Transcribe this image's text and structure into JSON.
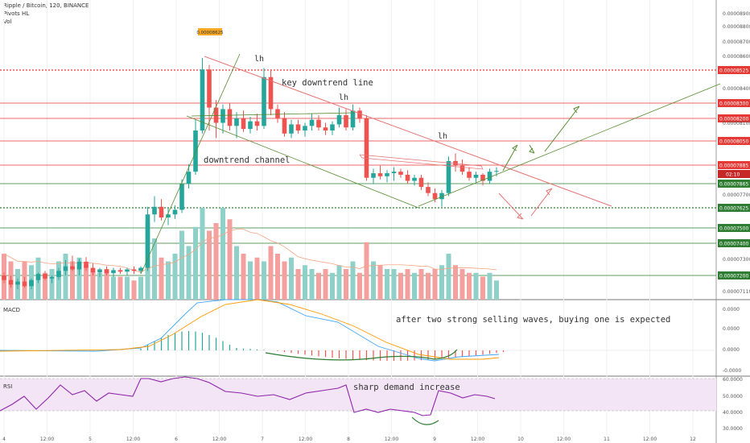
{
  "header": {
    "line1": "Ripple / Bitcoin, 120, BINANCE",
    "line2": "Pivots HL",
    "line3": "Vol"
  },
  "panes": {
    "macd": "MACD",
    "rsi": "RSI"
  },
  "annotations": {
    "pivot_tag": "0.00008625",
    "lh1": "lh",
    "lh2": "lh",
    "lh3": "lh",
    "key_line": "key downtrend line",
    "channel": "downtrend channel",
    "macd_note": "after two strong selling waves, buying one is expected",
    "rsi_note": "sharp demand increase"
  },
  "colors": {
    "bull": "#26a69a",
    "bear": "#ef5350",
    "vol_bull": "#8fd1c9",
    "vol_bear": "#f4a09f",
    "red_level": "#e53935",
    "green_level": "#2e7d32",
    "macd_line": "#42a5f5",
    "signal_line": "#ff9800",
    "rsi_line": "#8e24aa",
    "rsi_band": "#f3e5f5",
    "trend_red": "#e57373",
    "trend_green": "#558b2f"
  },
  "chart_data": {
    "type": "candlestick",
    "x_tick_labels": [
      "4",
      "12:00",
      "5",
      "12:00",
      "6",
      "12:00",
      "7",
      "12:00",
      "8",
      "12:00",
      "9",
      "12:00",
      "10",
      "12:00",
      "11",
      "12:00",
      "12"
    ],
    "price_axis_ticks": [
      "0.00008900",
      "0.00008800",
      "0.00008700",
      "0.00008600",
      "0.00008400",
      "0.00008100",
      "0.00007700",
      "0.00007300",
      "0.00007110"
    ],
    "price_levels": [
      {
        "value": "0.00008525",
        "color": "red",
        "dotted": true
      },
      {
        "value": "0.00008300",
        "color": "red",
        "dotted": false
      },
      {
        "value": "0.00008200",
        "color": "red",
        "dotted": false
      },
      {
        "value": "0.00008050",
        "color": "red",
        "dotted": false
      },
      {
        "value": "0.00007885",
        "color": "red",
        "dotted": false
      },
      {
        "value": "0.00007865",
        "color": "green",
        "dotted": false
      },
      {
        "value": "0.00007625",
        "color": "green",
        "dotted": true
      },
      {
        "value": "0.00007500",
        "color": "green",
        "dotted": false
      },
      {
        "value": "0.00007400",
        "color": "green",
        "dotted": false
      },
      {
        "value": "0.00007200",
        "color": "green",
        "dotted": false
      }
    ],
    "current_price": "0.00007885",
    "countdown": "02:10",
    "macd_axis_ticks": [
      "0.0000",
      "0.0000",
      "0.0000",
      "-0.0000"
    ],
    "rsi_axis_ticks": [
      "60.0000",
      "50.0000",
      "40.0000",
      "30.0000"
    ],
    "candles": [
      {
        "o": 7.2e-05,
        "h": 7.22e-05,
        "l": 7.15e-05,
        "c": 7.17e-05,
        "v": 0.6
      },
      {
        "o": 7.17e-05,
        "h": 7.2e-05,
        "l": 7.12e-05,
        "c": 7.14e-05,
        "v": 0.5
      },
      {
        "o": 7.14e-05,
        "h": 7.18e-05,
        "l": 7.11e-05,
        "c": 7.16e-05,
        "v": 0.4
      },
      {
        "o": 7.16e-05,
        "h": 7.19e-05,
        "l": 7.12e-05,
        "c": 7.13e-05,
        "v": 0.5
      },
      {
        "o": 7.13e-05,
        "h": 7.18e-05,
        "l": 7.11e-05,
        "c": 7.17e-05,
        "v": 0.45
      },
      {
        "o": 7.17e-05,
        "h": 7.22e-05,
        "l": 7.15e-05,
        "c": 7.21e-05,
        "v": 0.55
      },
      {
        "o": 7.21e-05,
        "h": 7.23e-05,
        "l": 7.17e-05,
        "c": 7.18e-05,
        "v": 0.35
      },
      {
        "o": 7.18e-05,
        "h": 7.2e-05,
        "l": 7.15e-05,
        "c": 7.19e-05,
        "v": 0.4
      },
      {
        "o": 7.19e-05,
        "h": 7.25e-05,
        "l": 7.17e-05,
        "c": 7.23e-05,
        "v": 0.5
      },
      {
        "o": 7.23e-05,
        "h": 7.3e-05,
        "l": 7.2e-05,
        "c": 7.26e-05,
        "v": 0.6
      },
      {
        "o": 7.26e-05,
        "h": 7.33e-05,
        "l": 7.23e-05,
        "c": 7.24e-05,
        "v": 0.5
      },
      {
        "o": 7.24e-05,
        "h": 7.31e-05,
        "l": 7.2e-05,
        "c": 7.29e-05,
        "v": 0.55
      },
      {
        "o": 7.29e-05,
        "h": 7.32e-05,
        "l": 7.23e-05,
        "c": 7.25e-05,
        "v": 0.45
      },
      {
        "o": 7.25e-05,
        "h": 7.28e-05,
        "l": 7.2e-05,
        "c": 7.22e-05,
        "v": 0.4
      },
      {
        "o": 7.22e-05,
        "h": 7.25e-05,
        "l": 7.19e-05,
        "c": 7.24e-05,
        "v": 0.35
      },
      {
        "o": 7.24e-05,
        "h": 7.26e-05,
        "l": 7.2e-05,
        "c": 7.215e-05,
        "v": 0.4
      },
      {
        "o": 7.215e-05,
        "h": 7.25e-05,
        "l": 7.19e-05,
        "c": 7.235e-05,
        "v": 0.3
      },
      {
        "o": 7.235e-05,
        "h": 7.25e-05,
        "l": 7.21e-05,
        "c": 7.225e-05,
        "v": 0.3
      },
      {
        "o": 7.225e-05,
        "h": 7.25e-05,
        "l": 7.2e-05,
        "c": 7.24e-05,
        "v": 0.3
      },
      {
        "o": 7.24e-05,
        "h": 7.26e-05,
        "l": 7.21e-05,
        "c": 7.23e-05,
        "v": 0.25
      },
      {
        "o": 7.23e-05,
        "h": 7.26e-05,
        "l": 7.21e-05,
        "c": 7.25e-05,
        "v": 0.3
      },
      {
        "o": 7.25e-05,
        "h": 7.65e-05,
        "l": 7.23e-05,
        "c": 7.6e-05,
        "v": 1.0
      },
      {
        "o": 7.6e-05,
        "h": 7.72e-05,
        "l": 7.55e-05,
        "c": 7.65e-05,
        "v": 0.8
      },
      {
        "o": 7.65e-05,
        "h": 7.7e-05,
        "l": 7.56e-05,
        "c": 7.58e-05,
        "v": 0.55
      },
      {
        "o": 7.58e-05,
        "h": 7.64e-05,
        "l": 7.53e-05,
        "c": 7.6e-05,
        "v": 0.5
      },
      {
        "o": 7.6e-05,
        "h": 7.66e-05,
        "l": 7.57e-05,
        "c": 7.63e-05,
        "v": 0.6
      },
      {
        "o": 7.63e-05,
        "h": 7.83e-05,
        "l": 7.61e-05,
        "c": 7.8e-05,
        "v": 0.9
      },
      {
        "o": 7.8e-05,
        "h": 7.93e-05,
        "l": 7.77e-05,
        "c": 7.88e-05,
        "v": 0.7
      },
      {
        "o": 7.88e-05,
        "h": 8.22e-05,
        "l": 7.86e-05,
        "c": 8.15e-05,
        "v": 0.95
      },
      {
        "o": 8.15e-05,
        "h": 8.625e-05,
        "l": 8.13e-05,
        "c": 8.55e-05,
        "v": 1.2
      },
      {
        "o": 8.55e-05,
        "h": 8.58e-05,
        "l": 8.15e-05,
        "c": 8.3e-05,
        "v": 0.9
      },
      {
        "o": 8.3e-05,
        "h": 8.35e-05,
        "l": 8.1e-05,
        "c": 8.2e-05,
        "v": 1.0
      },
      {
        "o": 8.2e-05,
        "h": 8.32e-05,
        "l": 8.13e-05,
        "c": 8.29e-05,
        "v": 1.2
      },
      {
        "o": 8.29e-05,
        "h": 8.33e-05,
        "l": 8.15e-05,
        "c": 8.18e-05,
        "v": 1.05
      },
      {
        "o": 8.18e-05,
        "h": 8.27e-05,
        "l": 8.1e-05,
        "c": 8.23e-05,
        "v": 0.7
      },
      {
        "o": 8.23e-05,
        "h": 8.28e-05,
        "l": 8.14e-05,
        "c": 8.16e-05,
        "v": 0.6
      },
      {
        "o": 8.16e-05,
        "h": 8.24e-05,
        "l": 8.13e-05,
        "c": 8.21e-05,
        "v": 0.5
      },
      {
        "o": 8.21e-05,
        "h": 8.26e-05,
        "l": 8.15e-05,
        "c": 8.18e-05,
        "v": 0.55
      },
      {
        "o": 8.18e-05,
        "h": 8.56e-05,
        "l": 8.16e-05,
        "c": 8.5e-05,
        "v": 0.5
      },
      {
        "o": 8.5e-05,
        "h": 8.55e-05,
        "l": 8.25e-05,
        "c": 8.29e-05,
        "v": 0.7
      },
      {
        "o": 8.29e-05,
        "h": 8.32e-05,
        "l": 8.2e-05,
        "c": 8.23e-05,
        "v": 0.6
      },
      {
        "o": 8.23e-05,
        "h": 8.27e-05,
        "l": 8.11e-05,
        "c": 8.13e-05,
        "v": 0.5
      },
      {
        "o": 8.13e-05,
        "h": 8.22e-05,
        "l": 8.1e-05,
        "c": 8.19e-05,
        "v": 0.55
      },
      {
        "o": 8.19e-05,
        "h": 8.22e-05,
        "l": 8.13e-05,
        "c": 8.15e-05,
        "v": 0.4
      },
      {
        "o": 8.15e-05,
        "h": 8.2e-05,
        "l": 8.11e-05,
        "c": 8.18e-05,
        "v": 0.45
      },
      {
        "o": 8.18e-05,
        "h": 8.26e-05,
        "l": 8.15e-05,
        "c": 8.22e-05,
        "v": 0.4
      },
      {
        "o": 8.22e-05,
        "h": 8.25e-05,
        "l": 8.15e-05,
        "c": 8.17e-05,
        "v": 0.35
      },
      {
        "o": 8.17e-05,
        "h": 8.2e-05,
        "l": 8.12e-05,
        "c": 8.15e-05,
        "v": 0.4
      },
      {
        "o": 8.15e-05,
        "h": 8.21e-05,
        "l": 8.12e-05,
        "c": 8.19e-05,
        "v": 0.35
      },
      {
        "o": 8.19e-05,
        "h": 8.3e-05,
        "l": 8.17e-05,
        "c": 8.25e-05,
        "v": 0.45
      },
      {
        "o": 8.25e-05,
        "h": 8.29e-05,
        "l": 8.15e-05,
        "c": 8.17e-05,
        "v": 0.4
      },
      {
        "o": 8.17e-05,
        "h": 8.32e-05,
        "l": 8.15e-05,
        "c": 8.28e-05,
        "v": 0.5
      },
      {
        "o": 8.28e-05,
        "h": 8.3e-05,
        "l": 8.2e-05,
        "c": 8.23e-05,
        "v": 0.35
      },
      {
        "o": 8.23e-05,
        "h": 8.25e-05,
        "l": 7.82e-05,
        "c": 7.84e-05,
        "v": 0.75
      },
      {
        "o": 7.84e-05,
        "h": 7.9e-05,
        "l": 7.8e-05,
        "c": 7.87e-05,
        "v": 0.5
      },
      {
        "o": 7.87e-05,
        "h": 7.92e-05,
        "l": 7.83e-05,
        "c": 7.85e-05,
        "v": 0.45
      },
      {
        "o": 7.85e-05,
        "h": 7.89e-05,
        "l": 7.81e-05,
        "c": 7.87e-05,
        "v": 0.4
      },
      {
        "o": 7.87e-05,
        "h": 7.91e-05,
        "l": 7.82e-05,
        "c": 7.88e-05,
        "v": 0.4
      },
      {
        "o": 7.88e-05,
        "h": 7.9e-05,
        "l": 7.84e-05,
        "c": 7.86e-05,
        "v": 0.35
      },
      {
        "o": 7.86e-05,
        "h": 7.89e-05,
        "l": 7.8e-05,
        "c": 7.82e-05,
        "v": 0.4
      },
      {
        "o": 7.82e-05,
        "h": 7.86e-05,
        "l": 7.79e-05,
        "c": 7.84e-05,
        "v": 0.35
      },
      {
        "o": 7.84e-05,
        "h": 7.86e-05,
        "l": 7.76e-05,
        "c": 7.78e-05,
        "v": 0.4
      },
      {
        "o": 7.78e-05,
        "h": 7.81e-05,
        "l": 7.72e-05,
        "c": 7.74e-05,
        "v": 0.35
      },
      {
        "o": 7.74e-05,
        "h": 7.77e-05,
        "l": 7.68e-05,
        "c": 7.7e-05,
        "v": 0.4
      },
      {
        "o": 7.7e-05,
        "h": 7.76e-05,
        "l": 7.65e-05,
        "c": 7.74e-05,
        "v": 0.45
      },
      {
        "o": 7.74e-05,
        "h": 7.98e-05,
        "l": 7.72e-05,
        "c": 7.95e-05,
        "v": 0.6
      },
      {
        "o": 7.95e-05,
        "h": 8e-05,
        "l": 7.88e-05,
        "c": 7.92e-05,
        "v": 0.45
      },
      {
        "o": 7.92e-05,
        "h": 7.96e-05,
        "l": 7.86e-05,
        "c": 7.88e-05,
        "v": 0.4
      },
      {
        "o": 7.88e-05,
        "h": 7.91e-05,
        "l": 7.82e-05,
        "c": 7.84e-05,
        "v": 0.35
      },
      {
        "o": 7.84e-05,
        "h": 7.88e-05,
        "l": 7.81e-05,
        "c": 7.86e-05,
        "v": 0.35
      },
      {
        "o": 7.86e-05,
        "h": 7.87e-05,
        "l": 7.79e-05,
        "c": 7.82e-05,
        "v": 0.3
      },
      {
        "o": 7.82e-05,
        "h": 7.9e-05,
        "l": 7.8e-05,
        "c": 7.88e-05,
        "v": 0.35
      },
      {
        "o": 7.88e-05,
        "h": 7.91e-05,
        "l": 7.85e-05,
        "c": 7.885e-05,
        "v": 0.25
      }
    ]
  }
}
